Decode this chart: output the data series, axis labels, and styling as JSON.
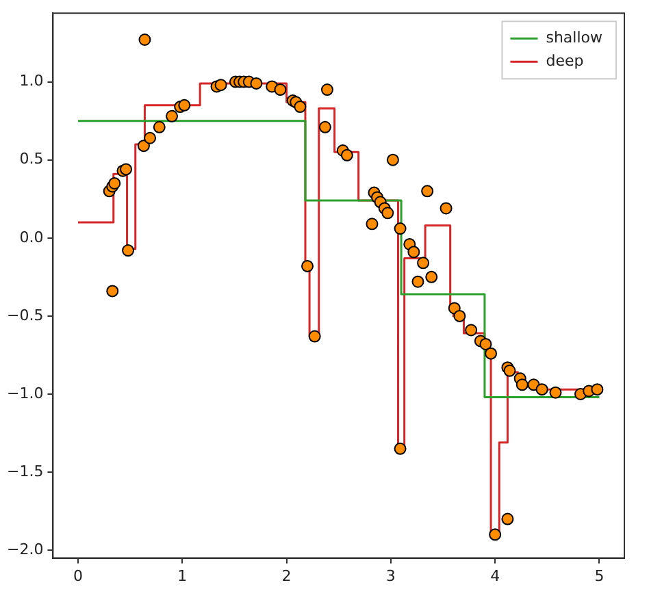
{
  "chart_data": {
    "type": "line",
    "xlim": [
      -0.24,
      5.24
    ],
    "ylim": [
      -2.05,
      1.44
    ],
    "xticks": [
      0,
      1,
      2,
      3,
      4,
      5
    ],
    "yticks": [
      {
        "value": -2,
        "label": "−2.0"
      },
      {
        "value": -1.5,
        "label": "−1.5"
      },
      {
        "value": -1,
        "label": "−1.0"
      },
      {
        "value": -0.5,
        "label": "−0.5"
      },
      {
        "value": 0,
        "label": "0.0"
      },
      {
        "value": 0.5,
        "label": "0.5"
      },
      {
        "value": 1,
        "label": "1.0"
      }
    ],
    "grid": false,
    "legend": "top right",
    "series": [
      {
        "type": "scatter",
        "marker": "circle",
        "color": "#ff8c00",
        "x": [
          0.3,
          0.33,
          0.35,
          0.43,
          0.46,
          0.48,
          0.63,
          0.69,
          0.78,
          0.9,
          0.98,
          1.02,
          0.64,
          1.33,
          1.37,
          1.51,
          1.55,
          1.59,
          1.64,
          1.71,
          1.86,
          1.94,
          2.06,
          2.09,
          2.13,
          2.2,
          2.27,
          2.39,
          2.37,
          2.54,
          2.58,
          3.02,
          2.82,
          2.84,
          2.87,
          2.9,
          2.94,
          2.97,
          3.09,
          3.18,
          3.22,
          3.31,
          3.26,
          3.35,
          3.39,
          3.53,
          3.61,
          3.66,
          3.77,
          3.86,
          3.91,
          3.96,
          4.12,
          4.14,
          4.24,
          4.26,
          4.37,
          4.45,
          4.58,
          4.82,
          4.9,
          4.98,
          3.09,
          4.0,
          4.12,
          0.33
        ],
        "values": [
          0.3,
          0.33,
          0.35,
          0.43,
          0.44,
          -0.08,
          0.59,
          0.64,
          0.71,
          0.78,
          0.84,
          0.85,
          1.27,
          0.97,
          0.98,
          1.0,
          1.0,
          1.0,
          1.0,
          0.99,
          0.97,
          0.95,
          0.88,
          0.87,
          0.84,
          -0.18,
          -0.63,
          0.95,
          0.71,
          0.56,
          0.53,
          0.5,
          0.09,
          0.29,
          0.26,
          0.23,
          0.19,
          0.16,
          0.06,
          -0.04,
          -0.09,
          -0.16,
          -0.28,
          0.3,
          -0.25,
          0.19,
          -0.45,
          -0.5,
          -0.59,
          -0.66,
          -0.68,
          -0.74,
          -0.83,
          -0.85,
          -0.9,
          -0.94,
          -0.94,
          -0.97,
          -0.99,
          -1.0,
          -0.98,
          -0.97,
          -1.35,
          -1.9,
          -1.8,
          -0.34
        ]
      },
      {
        "type": "step",
        "name": "shallow",
        "color": "#2ca02c",
        "x": [
          0,
          2.18,
          3.1,
          3.9,
          5.0
        ],
        "values": [
          0.75,
          0.24,
          -0.36,
          -1.02,
          -1.02
        ]
      },
      {
        "type": "step",
        "name": "deep",
        "color": "#d62728",
        "x": [
          0,
          0.34,
          0.47,
          0.55,
          0.64,
          1.17,
          2.0,
          2.18,
          2.22,
          2.31,
          2.46,
          2.69,
          3.07,
          3.13,
          3.33,
          3.57,
          3.6,
          3.7,
          3.9,
          3.93,
          3.96,
          4.04,
          4.12,
          4.22,
          4.45,
          5.0
        ],
        "values": [
          0.1,
          0.41,
          -0.07,
          0.6,
          0.85,
          0.99,
          0.87,
          -0.18,
          -0.63,
          0.83,
          0.55,
          0.24,
          -1.35,
          -0.13,
          0.08,
          -0.45,
          -0.5,
          -0.61,
          -0.68,
          -0.74,
          -1.9,
          -1.31,
          -0.86,
          -0.94,
          -0.97,
          -0.97
        ]
      }
    ]
  }
}
